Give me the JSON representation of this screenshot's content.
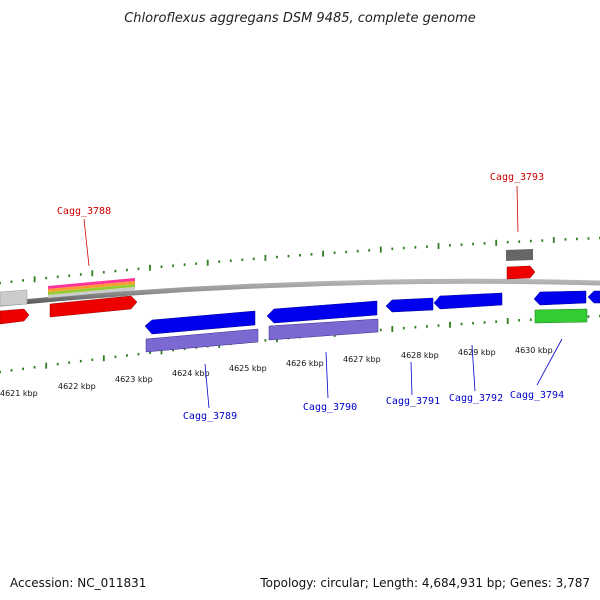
{
  "title": "Chloroflexus aggregans DSM 9485, complete genome",
  "footer": {
    "accession": "Accession: NC_011831",
    "topology": "Topology: circular; Length: 4,684,931 bp; Genes: 3,787"
  },
  "colors": {
    "backbone": "#8a8a8a",
    "tick": "#2e7d1e",
    "forward_label": "#cc0000",
    "reverse_label": "#0000cc",
    "cds_red": "#ee0000",
    "cds_blue": "#0000ee",
    "cds_purple": "#7b68d0",
    "cds_grey": "#c8c8c8",
    "cds_darkgrey": "#666666",
    "cds_green": "#33cc33"
  },
  "scale": {
    "unit": "kbp",
    "ticks": [
      {
        "label": "4621 kbp"
      },
      {
        "label": "4622 kbp"
      },
      {
        "label": "4623 kbp"
      },
      {
        "label": "4624 kbp"
      },
      {
        "label": "4625 kbp"
      },
      {
        "label": "4626 kbp"
      },
      {
        "label": "4627 kbp"
      },
      {
        "label": "4628 kbp"
      },
      {
        "label": "4629 kbp"
      },
      {
        "label": "4630 kbp"
      }
    ]
  },
  "gene_labels": [
    {
      "name": "Cagg_3788",
      "strand": "forward"
    },
    {
      "name": "Cagg_3793",
      "strand": "forward"
    },
    {
      "name": "Cagg_3789",
      "strand": "reverse"
    },
    {
      "name": "Cagg_3790",
      "strand": "reverse"
    },
    {
      "name": "Cagg_3791",
      "strand": "reverse"
    },
    {
      "name": "Cagg_3792",
      "strand": "reverse"
    },
    {
      "name": "Cagg_3794",
      "strand": "reverse"
    }
  ]
}
